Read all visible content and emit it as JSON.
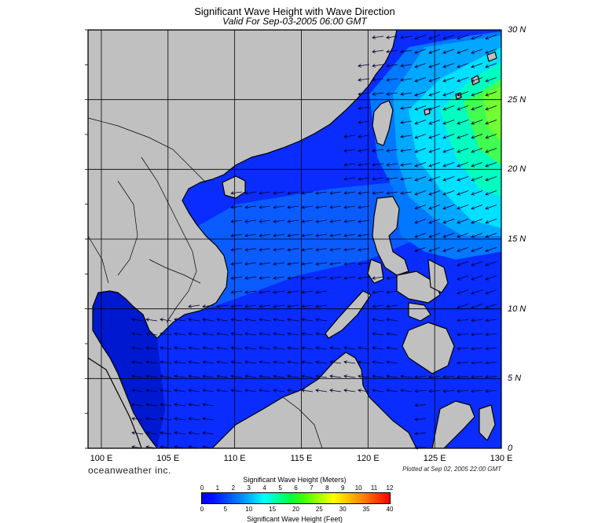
{
  "title": "Significant Wave Height with Wave Direction",
  "subtitle": "Valid For Sep-03-2005 06:00 GMT",
  "map": {
    "lon_range": [
      99,
      130
    ],
    "lat_range": [
      0,
      30
    ],
    "lat_labels": [
      "0",
      "5 N",
      "10 N",
      "15 N",
      "20 N",
      "25 N",
      "30 N"
    ],
    "lat_values": [
      0,
      5,
      10,
      15,
      20,
      25,
      30
    ],
    "lon_labels": [
      "100 E",
      "105 E",
      "110 E",
      "115 E",
      "120 E",
      "125 E",
      "130 E"
    ],
    "lon_values": [
      100,
      105,
      110,
      115,
      120,
      125,
      130
    ],
    "land_color": "#c0c0c0",
    "coast_color": "#000000",
    "grid_color": "#000000",
    "arrow_color": "#000033"
  },
  "branding": "oceanweather inc.",
  "plotted": "Plotted at Sep 02, 2005 22:00 GMT",
  "colorbar": {
    "title_meters": "Significant Wave Height (Meters)",
    "title_feet": "Significant Wave Height (Feet)",
    "meter_ticks": [
      "0",
      "1",
      "2",
      "3",
      "4",
      "5",
      "6",
      "7",
      "8",
      "9",
      "10",
      "11",
      "12"
    ],
    "feet_ticks": [
      "0",
      "5",
      "10",
      "15",
      "20",
      "25",
      "30",
      "35",
      "40"
    ]
  }
}
